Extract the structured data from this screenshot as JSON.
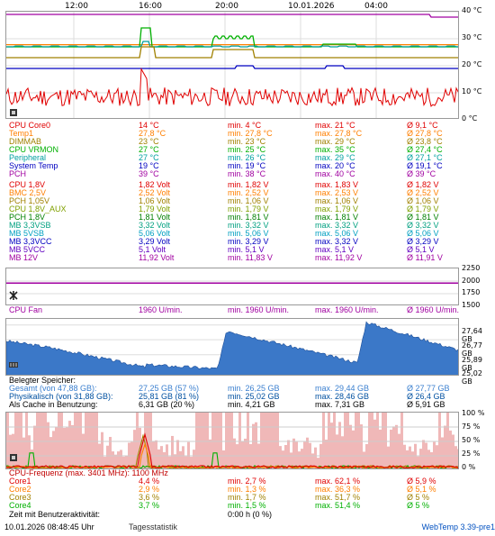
{
  "time_axis": [
    "12:00",
    "16:00",
    "20:00",
    "10.01.2026",
    "04:00"
  ],
  "temp_chart": {
    "ticks": [
      "40 °C",
      "30 °C",
      "20 °C",
      "10 °C",
      "0 °C"
    ]
  },
  "temps": [
    {
      "name": "CPU Core0",
      "cur": "14 °C",
      "min": "min. 4 °C",
      "max": "max. 21 °C",
      "avg": "Ø 9,1 °C",
      "color": "#e00000"
    },
    {
      "name": "Temp1",
      "cur": "27,8 °C",
      "min": "min. 27,8 °C",
      "max": "max. 27,8 °C",
      "avg": "Ø 27,8 °C",
      "color": "#ff7f00"
    },
    {
      "name": "DIMMAB",
      "cur": "23 °C",
      "min": "min. 23 °C",
      "max": "max. 29 °C",
      "avg": "Ø 23,8 °C",
      "color": "#a08000"
    },
    {
      "name": "CPU VRMON",
      "cur": "27 °C",
      "min": "min. 25 °C",
      "max": "max. 35 °C",
      "avg": "Ø 27,4 °C",
      "color": "#00b000"
    },
    {
      "name": "Peripheral",
      "cur": "27 °C",
      "min": "min. 26 °C",
      "max": "max. 29 °C",
      "avg": "Ø 27,1 °C",
      "color": "#00a0a0"
    },
    {
      "name": "System Temp",
      "cur": "19 °C",
      "min": "min. 19 °C",
      "max": "max. 20 °C",
      "avg": "Ø 19,1 °C",
      "color": "#0000c0"
    },
    {
      "name": "PCH",
      "cur": "39 °C",
      "min": "min. 38 °C",
      "max": "max. 40 °C",
      "avg": "Ø 39 °C",
      "color": "#a000a0"
    }
  ],
  "volts": [
    {
      "name": "CPU 1,8V",
      "cur": "1,82 Volt",
      "min": "min. 1,82 V",
      "max": "max. 1,83 V",
      "avg": "Ø 1,82 V",
      "color": "#e00000"
    },
    {
      "name": "BMC 2,5V",
      "cur": "2,52 Volt",
      "min": "min. 2,52 V",
      "max": "max. 2,53 V",
      "avg": "Ø 2,52 V",
      "color": "#ff7f00"
    },
    {
      "name": "PCH 1,05V",
      "cur": "1,06 Volt",
      "min": "min. 1,06 V",
      "max": "max. 1,06 V",
      "avg": "Ø 1,06 V",
      "color": "#a08000"
    },
    {
      "name": "CPU 1,8V_AUX",
      "cur": "1,79 Volt",
      "min": "min. 1,79 V",
      "max": "max. 1,79 V",
      "avg": "Ø 1,79 V",
      "color": "#80a000"
    },
    {
      "name": "PCH 1,8V",
      "cur": "1,81 Volt",
      "min": "min. 1,81 V",
      "max": "max. 1,81 V",
      "avg": "Ø 1,81 V",
      "color": "#008000"
    },
    {
      "name": "MB 3,3VSB",
      "cur": "3,32 Volt",
      "min": "min. 3,32 V",
      "max": "max. 3,32 V",
      "avg": "Ø 3,32 V",
      "color": "#00a080"
    },
    {
      "name": "MB 5VSB",
      "cur": "5,06 Volt",
      "min": "min. 5,06 V",
      "max": "max. 5,06 V",
      "avg": "Ø 5,06 V",
      "color": "#00a0c0"
    },
    {
      "name": "MB 3,3VCC",
      "cur": "3,29 Volt",
      "min": "min. 3,29 V",
      "max": "max. 3,32 V",
      "avg": "Ø 3,29 V",
      "color": "#0000c0"
    },
    {
      "name": "MB 5VCC",
      "cur": "5,1 Volt",
      "min": "min. 5,1 V",
      "max": "max. 5,1 V",
      "avg": "Ø 5,1 V",
      "color": "#6000c0"
    },
    {
      "name": "MB 12V",
      "cur": "11,92 Volt",
      "min": "min. 11,83 V",
      "max": "max. 11,92 V",
      "avg": "Ø 11,91 V",
      "color": "#a000a0"
    }
  ],
  "fan_chart": {
    "ticks": [
      "2250",
      "2000",
      "1750",
      "1500"
    ]
  },
  "fan": {
    "name": "CPU Fan",
    "cur": "1960 U/min.",
    "min": "min. 1960 U/min.",
    "max": "max. 1960 U/min.",
    "avg": "Ø 1960 U/min.",
    "color": "#a000a0"
  },
  "mem_chart": {
    "ticks": [
      "27,64 GB",
      "26,77 GB",
      "25,89 GB",
      "25,02 GB"
    ]
  },
  "mem": {
    "title": "Belegter Speicher:",
    "rows": [
      {
        "name": "Gesamt (von 47,88 GB):",
        "cur": "27,25 GB (57 %)",
        "min": "min. 26,25 GB",
        "max": "max. 29,44 GB",
        "avg": "Ø 27,77 GB",
        "color": "#3a7fcf"
      },
      {
        "name": "Physikalisch (von 31,88 GB):",
        "cur": "25,81 GB (81 %)",
        "min": "min. 25,02 GB",
        "max": "max. 28,46 GB",
        "avg": "Ø 26,4 GB",
        "color": "#0050a0"
      },
      {
        "name": "Als Cache in Benutzung:",
        "cur": "6,31 GB (20 %)",
        "min": "min. 4,21 GB",
        "max": "max. 7,31 GB",
        "avg": "Ø 5,91 GB",
        "color": "#000000"
      }
    ]
  },
  "cpu_chart": {
    "ticks": [
      "100 %",
      "75 %",
      "50 %",
      "25 %",
      "0 %"
    ]
  },
  "cpu": {
    "title": "CPU-Frequenz (max. 3401 MHz): 1100 MHz",
    "rows": [
      {
        "name": "Core1",
        "cur": "4,4 %",
        "min": "min. 2,7 %",
        "max": "max. 62,1 %",
        "avg": "Ø 5,9 %",
        "color": "#e00000"
      },
      {
        "name": "Core2",
        "cur": "2,9 %",
        "min": "min. 1,3 %",
        "max": "max. 36,3 %",
        "avg": "Ø 5,1 %",
        "color": "#ff7f00"
      },
      {
        "name": "Core3",
        "cur": "3,6 %",
        "min": "min. 1,7 %",
        "max": "max. 51,7 %",
        "avg": "Ø 5 %",
        "color": "#a08000"
      },
      {
        "name": "Core4",
        "cur": "3,7 %",
        "min": "min. 1,5 %",
        "max": "max. 51,4 %",
        "avg": "Ø 5 %",
        "color": "#00b000"
      }
    ],
    "idle_label": "Zeit mit Benutzeraktivität:",
    "idle_value": "0:00 h (0 %)"
  },
  "footer": {
    "datetime": "10.01.2026 08:48:45 Uhr",
    "stats_link": "Tagesstatistik",
    "version": "WebTemp 3.39-pre1"
  }
}
